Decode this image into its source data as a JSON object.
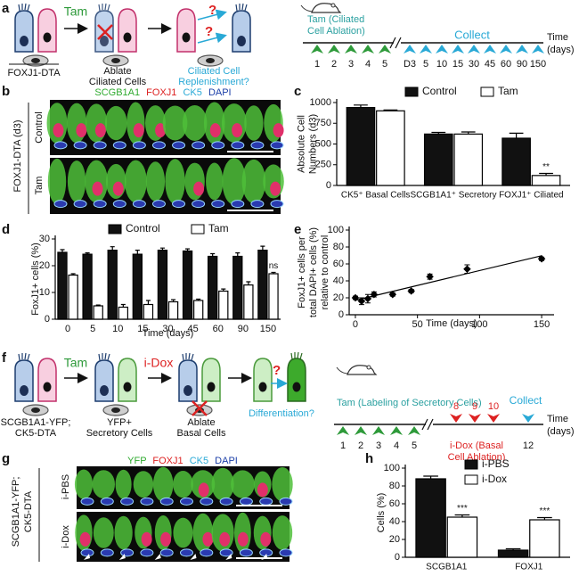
{
  "panel_letters": [
    "a",
    "b",
    "c",
    "d",
    "e",
    "f",
    "g",
    "h"
  ],
  "panel_a": {
    "tam": "Tam",
    "group_labels": [
      [
        "FOXJ1-DTA"
      ],
      [
        "Ablate",
        "Ciliated Cells"
      ],
      [
        "Ciliated Cell",
        "Replenishment?"
      ]
    ],
    "questions": [
      "?",
      "?"
    ],
    "timeline": {
      "tam_label": [
        "Tam (Ciliated",
        "Cell Ablation)"
      ],
      "collect": "Collect",
      "time": [
        "Time",
        "(days)"
      ],
      "tam_days": [
        "1",
        "2",
        "3",
        "4",
        "5"
      ],
      "collect_days": [
        "D3",
        "5",
        "10",
        "15",
        "30",
        "45",
        "60",
        "90",
        "150"
      ]
    }
  },
  "panel_b": {
    "stains": [
      "SCGB1A1",
      "FOXJ1",
      "CK5",
      "DAPI"
    ],
    "side": "FOXJ1-DTA (d3)",
    "rows": [
      "Control",
      "Tam"
    ]
  },
  "panel_f": {
    "tam": "Tam",
    "idox": "i-Dox",
    "group_labels": [
      [
        "SCGB1A1-YFP;",
        "CK5-DTA"
      ],
      [
        "YFP+",
        "Secretory Cells"
      ],
      [
        "Ablate",
        "Basal Cells"
      ],
      [
        "Differentiation?"
      ]
    ],
    "question": "?",
    "timeline": {
      "tam_label": "Tam (Labeling of Secretory Cells)",
      "tam_days": [
        "1",
        "2",
        "3",
        "4",
        "5"
      ],
      "idox_days": [
        "8",
        "9",
        "10"
      ],
      "idox_label": [
        "i-Dox (Basal",
        "Cell Ablation)"
      ],
      "collect": "Collect",
      "collect_day": "12",
      "time": [
        "Time",
        "(days)"
      ]
    }
  },
  "panel_g": {
    "stains": [
      "YFP",
      "FOXJ1",
      "CK5",
      "DAPI"
    ],
    "side": [
      "SCGB1A1-YFP;",
      "CK5-DTA"
    ],
    "rows": [
      "i-PBS",
      "i-Dox"
    ]
  },
  "chart_data": [
    {
      "type": "bar",
      "ylabel": [
        "Absolute Cell",
        "Numbers (d3)"
      ],
      "categories": [
        "CK5⁺ Basal Cells",
        "SCGB1A1⁺ Secretory",
        "FOXJ1⁺ Ciliated"
      ],
      "series": [
        {
          "name": "Control",
          "color": "#111111",
          "values": [
            940,
            620,
            570
          ],
          "errors": [
            30,
            20,
            60
          ]
        },
        {
          "name": "Tam",
          "color": "#ffffff",
          "values": [
            900,
            620,
            120
          ],
          "errors": [
            10,
            25,
            25
          ]
        }
      ],
      "annotations": [
        "**"
      ],
      "ylim": [
        0,
        1000
      ],
      "yticks": [
        0,
        250,
        500,
        750,
        1000
      ],
      "legend": "top"
    },
    {
      "type": "bar",
      "ylabel": [
        "FoxJ1+ cells (%)"
      ],
      "xlabel": "Time (days)",
      "categories": [
        "0",
        "5",
        "10",
        "15",
        "30",
        "45",
        "60",
        "90",
        "150"
      ],
      "series": [
        {
          "name": "Control",
          "color": "#111111",
          "values": [
            25,
            24.3,
            25.8,
            24.3,
            25.8,
            25.5,
            23.5,
            23.5,
            25.8
          ],
          "errors": [
            1,
            0.5,
            1.3,
            1.5,
            0.8,
            0.8,
            1,
            1.3,
            1.5
          ]
        },
        {
          "name": "Tam",
          "color": "#ffffff",
          "values": [
            16.5,
            5,
            4.5,
            5.5,
            6.5,
            7,
            10.5,
            12.8,
            17
          ],
          "errors": [
            0.5,
            0.3,
            1,
            1.5,
            0.8,
            0.5,
            0.8,
            1.2,
            0.5
          ]
        }
      ],
      "annotations": [
        "ns"
      ],
      "ylim": [
        0,
        30
      ],
      "yticks": [
        0,
        10,
        20,
        30
      ],
      "legend": "top"
    },
    {
      "type": "scatter",
      "ylabel": [
        "FoxJ1+ cells per",
        "total DAPI+ cells (%)",
        "relative to control"
      ],
      "xlabel": "Time (days)",
      "x": [
        0,
        5,
        10,
        15,
        30,
        45,
        60,
        90,
        150
      ],
      "values": [
        20,
        16,
        19,
        24,
        24,
        28,
        45,
        54,
        66
      ],
      "errors": [
        2,
        4,
        5,
        3,
        2,
        2,
        3,
        5,
        2
      ],
      "xlim": [
        -5,
        160
      ],
      "xticks": [
        0,
        50,
        100,
        150
      ],
      "ylim": [
        0,
        100
      ],
      "yticks": [
        0,
        20,
        40,
        60,
        80,
        100
      ]
    },
    {
      "type": "bar",
      "ylabel": [
        "Cells (%)"
      ],
      "categories": [
        "SCGB1A1",
        "FOXJ1"
      ],
      "series": [
        {
          "name": "i-PBS",
          "color": "#111111",
          "values": [
            88,
            8
          ],
          "errors": [
            3,
            1.5
          ]
        },
        {
          "name": "i-Dox",
          "color": "#ffffff",
          "values": [
            45,
            42
          ],
          "errors": [
            2.5,
            2.5
          ]
        }
      ],
      "annotations": [
        "***",
        "***"
      ],
      "ylim": [
        0,
        100
      ],
      "yticks": [
        0,
        20,
        40,
        60,
        80,
        100
      ],
      "legend": "top-right"
    }
  ]
}
